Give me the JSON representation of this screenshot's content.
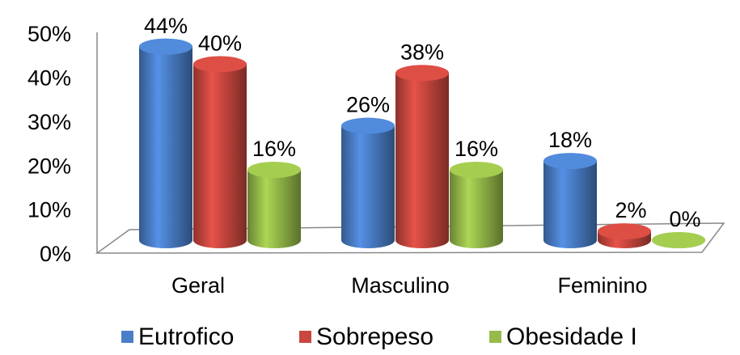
{
  "chart_data": {
    "type": "bar3d",
    "categories": [
      "Geral",
      "Masculino",
      "Feminino"
    ],
    "series": [
      {
        "name": "Eutrofico",
        "color": "#4a7ec8",
        "values": [
          44,
          26,
          18
        ],
        "value_labels": [
          "44%",
          "26%",
          "18%"
        ]
      },
      {
        "name": "Sobrepeso",
        "color": "#c9473f",
        "values": [
          40,
          38,
          2
        ],
        "value_labels": [
          "40%",
          "38%",
          "2%"
        ]
      },
      {
        "name": "Obesidade I",
        "color": "#96bb4a",
        "values": [
          16,
          16,
          0
        ],
        "value_labels": [
          "16%",
          "16%",
          "0%"
        ]
      }
    ],
    "ylim": [
      0,
      50
    ],
    "yticks": [
      {
        "value": 0,
        "label": "0%"
      },
      {
        "value": 10,
        "label": "10%"
      },
      {
        "value": 20,
        "label": "20%"
      },
      {
        "value": 30,
        "label": "30%"
      },
      {
        "value": 40,
        "label": "40%"
      },
      {
        "value": 50,
        "label": "50%"
      }
    ],
    "legend": "bottom"
  }
}
